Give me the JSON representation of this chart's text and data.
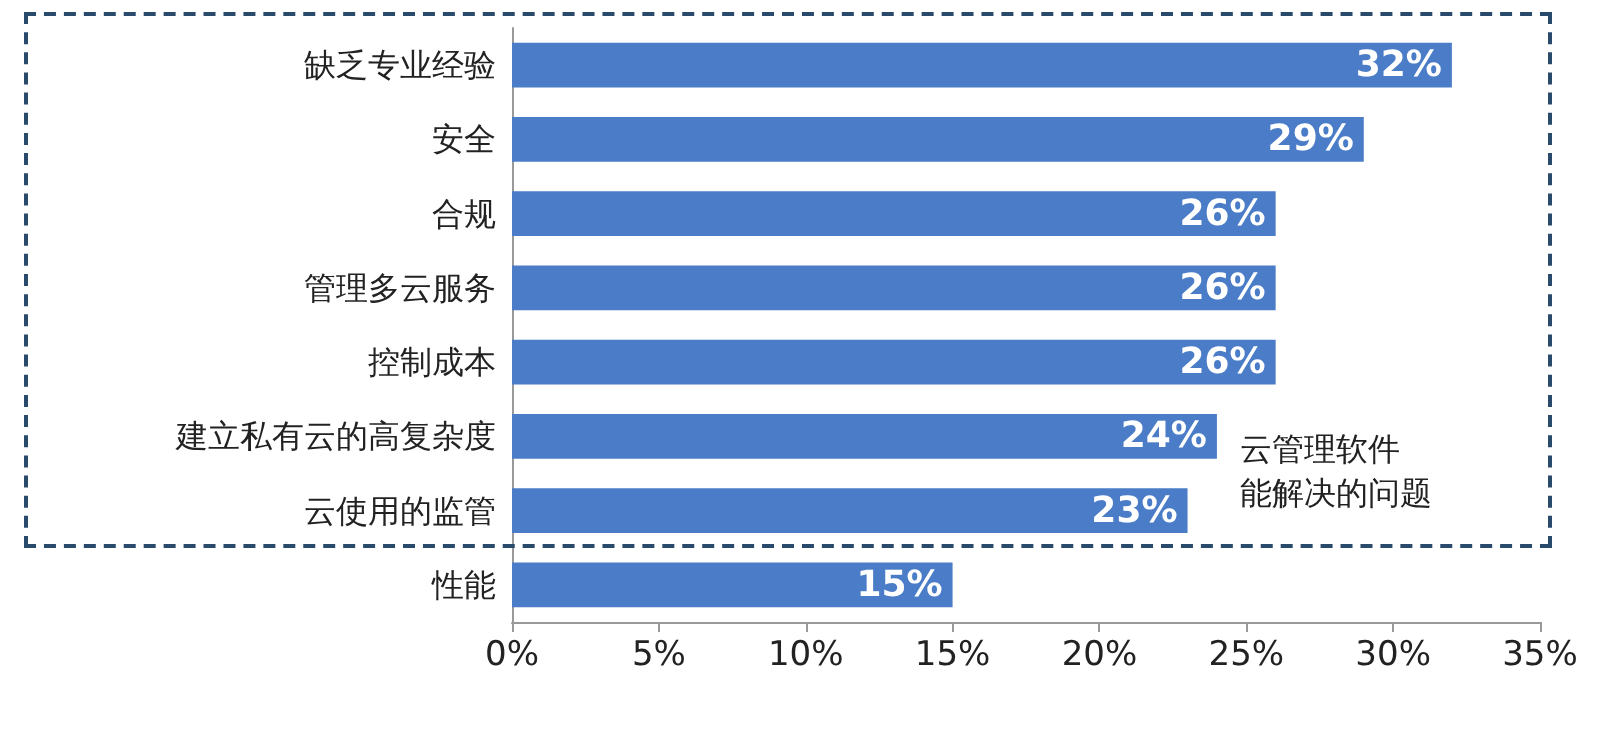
{
  "chart_data": {
    "type": "bar",
    "orientation": "horizontal",
    "categories": [
      "缺乏专业经验",
      "安全",
      "合规",
      "管理多云服务",
      "控制成本",
      "建立私有云的高复杂度",
      "云使用的监管",
      "性能"
    ],
    "values": [
      32,
      29,
      26,
      26,
      26,
      24,
      23,
      15
    ],
    "value_labels": [
      "32%",
      "29%",
      "26%",
      "26%",
      "26%",
      "24%",
      "23%",
      "15%"
    ],
    "color": "#4a7cc7",
    "xlim": [
      0,
      35
    ],
    "xticks": [
      {
        "value": 0,
        "label": "0%"
      },
      {
        "value": 5,
        "label": "5%"
      },
      {
        "value": 10,
        "label": "10%"
      },
      {
        "value": 15,
        "label": "15%"
      },
      {
        "value": 20,
        "label": "20%"
      },
      {
        "value": 25,
        "label": "25%"
      },
      {
        "value": 30,
        "label": "30%"
      },
      {
        "value": 35,
        "label": "35%"
      }
    ],
    "annotations": [
      "云管理软件",
      "能解决的问题"
    ],
    "grid": false
  }
}
